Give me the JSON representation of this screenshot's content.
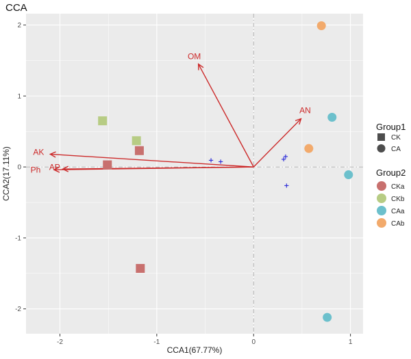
{
  "chart_data": {
    "type": "scatter",
    "title": "CCA",
    "xlabel": "CCA1(67.77%)",
    "ylabel": "CCA2(17.11%)",
    "xlim": [
      -2.35,
      1.13
    ],
    "ylim": [
      -2.35,
      2.16
    ],
    "xticks": [
      -2,
      -1,
      0,
      1
    ],
    "yticks": [
      -2,
      -1,
      0,
      1,
      2
    ],
    "grid": true,
    "colors": {
      "CKa": "#c8706e",
      "CKb": "#b7cc84",
      "CAa": "#6cc0cc",
      "CAb": "#f2aa6c",
      "arrow": "#cc2a2a",
      "species": "#2b2bd9",
      "panel": "#ebebeb"
    },
    "samples": [
      {
        "group1": "CK",
        "group2": "CKb",
        "x": -1.56,
        "y": 0.65
      },
      {
        "group1": "CK",
        "group2": "CKb",
        "x": -1.21,
        "y": 0.37
      },
      {
        "group1": "CK",
        "group2": "CKa",
        "x": -1.18,
        "y": 0.23
      },
      {
        "group1": "CK",
        "group2": "CKa",
        "x": -1.51,
        "y": 0.03
      },
      {
        "group1": "CK",
        "group2": "CKa",
        "x": -1.17,
        "y": -1.43
      },
      {
        "group1": "CA",
        "group2": "CAb",
        "x": 0.7,
        "y": 1.99
      },
      {
        "group1": "CA",
        "group2": "CAb",
        "x": 0.57,
        "y": 0.26
      },
      {
        "group1": "CA",
        "group2": "CAa",
        "x": 0.81,
        "y": 0.7
      },
      {
        "group1": "CA",
        "group2": "CAa",
        "x": 0.98,
        "y": -0.11
      },
      {
        "group1": "CA",
        "group2": "CAa",
        "x": 0.76,
        "y": -2.12
      }
    ],
    "species": [
      {
        "x": -0.44,
        "y": 0.1
      },
      {
        "x": -0.34,
        "y": 0.08
      },
      {
        "x": 0.31,
        "y": 0.11
      },
      {
        "x": 0.33,
        "y": 0.15
      },
      {
        "x": 0.34,
        "y": -0.26
      }
    ],
    "species_marker": "+",
    "arrows": [
      {
        "label": "OM",
        "x": -0.57,
        "y": 1.45
      },
      {
        "label": "AN",
        "x": 0.49,
        "y": 0.68
      },
      {
        "label": "AK",
        "x": -2.1,
        "y": 0.18
      },
      {
        "label": "Ph",
        "x": -2.06,
        "y": -0.04
      },
      {
        "label": "AP",
        "x": -1.97,
        "y": -0.03
      }
    ],
    "legend": {
      "group1": {
        "title": "Group1",
        "items": [
          {
            "label": "CK",
            "shape": "square"
          },
          {
            "label": "CA",
            "shape": "circle"
          }
        ]
      },
      "group2": {
        "title": "Group2",
        "items": [
          {
            "label": "CKa"
          },
          {
            "label": "CKb"
          },
          {
            "label": "CAa"
          },
          {
            "label": "CAb"
          }
        ]
      }
    }
  }
}
